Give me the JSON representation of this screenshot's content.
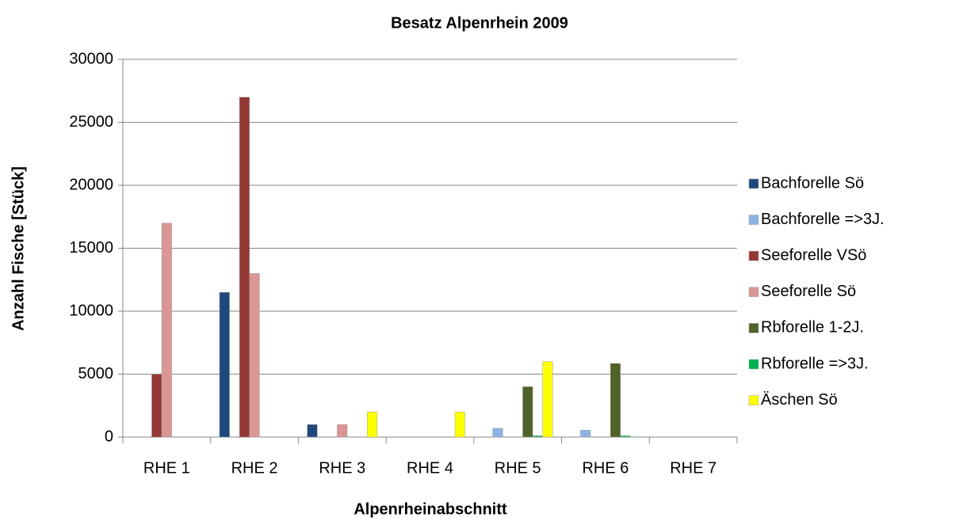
{
  "chart_data": {
    "type": "bar",
    "title": "Besatz Alpenrhein 2009",
    "x_label": "Alpenrheinabschnitt",
    "y_label": "Anzahl Fische [Stück]",
    "categories": [
      "RHE 1",
      "RHE 2",
      "RHE 3",
      "RHE 4",
      "RHE 5",
      "RHE 6",
      "RHE 7"
    ],
    "series": [
      {
        "name": "Bachforelle Sö",
        "color": "#1f497d",
        "values": [
          0,
          11500,
          1000,
          0,
          0,
          0,
          0
        ]
      },
      {
        "name": "Bachforelle =>3J.",
        "color": "#8db3e2",
        "values": [
          0,
          0,
          0,
          0,
          700,
          550,
          0
        ]
      },
      {
        "name": "Seeforelle VSö",
        "color": "#953735",
        "values": [
          5000,
          27000,
          0,
          0,
          0,
          0,
          0
        ]
      },
      {
        "name": "Seeforelle Sö",
        "color": "#d99694",
        "values": [
          17000,
          13000,
          1000,
          0,
          0,
          0,
          0
        ]
      },
      {
        "name": "Rbforelle 1-2J.",
        "color": "#4f6228",
        "values": [
          0,
          0,
          0,
          0,
          4000,
          5850,
          0
        ]
      },
      {
        "name": "Rbforelle =>3J.",
        "color": "#00b050",
        "values": [
          0,
          0,
          0,
          0,
          100,
          100,
          0
        ]
      },
      {
        "name": "Äschen Sö",
        "color": "#ffff00",
        "values": [
          0,
          0,
          2000,
          2000,
          6000,
          0,
          0
        ]
      }
    ],
    "ylim": [
      0,
      30000
    ],
    "yticks": [
      0,
      5000,
      10000,
      15000,
      20000,
      25000,
      30000
    ],
    "grid": true,
    "legend": "right"
  }
}
